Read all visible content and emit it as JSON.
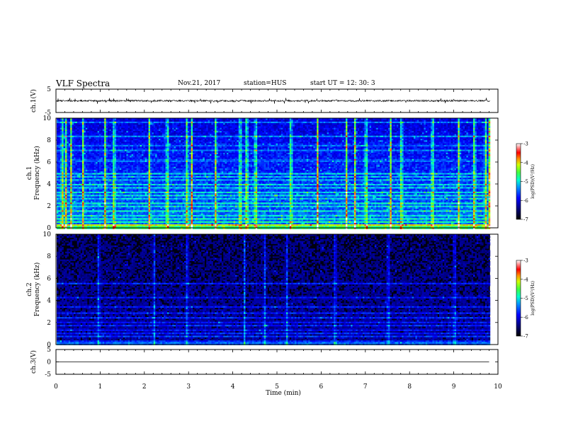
{
  "header": {
    "title": "VLF Spectra",
    "date": "Nov.21, 2017",
    "station": "station=HUS",
    "start": "start UT = 12: 30: 3"
  },
  "chart_data": [
    {
      "type": "line",
      "panel": "ch1-waveform",
      "ylabel": "ch.1(V)",
      "ylim": [
        -5,
        5
      ],
      "yticks": [
        "5",
        "-5"
      ],
      "series_description_value_mean": 0
    },
    {
      "type": "heatmap",
      "panel": "ch1-spectrogram",
      "ylabel": "ch.1\nFrequency (kHz)",
      "ylabel_lines": [
        "ch.1",
        "Frequency (kHz)"
      ],
      "ylim": [
        0,
        10
      ],
      "yticks": [
        "0",
        "2",
        "4",
        "6",
        "8",
        "10"
      ],
      "colorbar": {
        "label": "log(PSD)(V²/Hz)",
        "range": [
          -7,
          -3
        ],
        "ticks": [
          "-3",
          "-4",
          "-5",
          "-6",
          "-7"
        ]
      },
      "horizontal_bands_khz": [
        0.3,
        0.6,
        0.9,
        1.2,
        1.6,
        2.0,
        2.3,
        2.7,
        3.0,
        3.3,
        3.7,
        4.0,
        4.4,
        4.7,
        5.0,
        6.2,
        7.1,
        7.6,
        8.4,
        9.7
      ],
      "vertical_bursts_min": [
        0.12,
        0.2,
        0.33,
        0.6,
        1.1,
        1.3,
        2.1,
        2.5,
        2.95,
        3.05,
        3.6,
        4.15,
        4.3,
        4.5,
        5.3,
        5.9,
        6.55,
        6.75,
        7.0,
        7.55,
        7.8,
        8.5,
        9.1,
        9.45,
        9.7,
        9.78
      ]
    },
    {
      "type": "heatmap",
      "panel": "ch2-spectrogram",
      "ylabel_lines": [
        "ch.2",
        "Frequency (kHz)"
      ],
      "ylim": [
        0,
        10
      ],
      "yticks": [
        "0",
        "2",
        "4",
        "6",
        "8",
        "10"
      ],
      "colorbar": {
        "label": "log(PSD)(V²/Hz)",
        "range": [
          -7,
          -3
        ],
        "ticks": [
          "-3",
          "-4",
          "-5",
          "-6",
          "-7"
        ]
      },
      "horizontal_bands_khz": [
        0.4,
        0.8,
        1.1,
        1.4,
        1.8,
        2.1,
        2.5,
        2.9,
        3.5,
        4.3,
        5.6
      ],
      "vertical_bursts_min": [
        0.95,
        2.2,
        2.95,
        4.25,
        4.7,
        5.2,
        6.3,
        7.5,
        9.0
      ]
    },
    {
      "type": "line",
      "panel": "ch3-waveform",
      "ylabel": "ch.3(V)",
      "ylim": [
        -5,
        5
      ],
      "yticks": [
        "5",
        "0",
        "-5"
      ],
      "x": [
        0,
        9.8
      ],
      "values": [
        0,
        0
      ]
    }
  ],
  "xaxis": {
    "label": "Time (min)",
    "range": [
      0,
      10
    ],
    "ticks": [
      "0",
      "1",
      "2",
      "3",
      "4",
      "5",
      "6",
      "7",
      "8",
      "9",
      "10"
    ]
  },
  "colors": {
    "colormap": [
      "#000080",
      "#0000ff",
      "#0080ff",
      "#00ffff",
      "#00ff80",
      "#80ff00",
      "#ffff00",
      "#ff8000",
      "#ff0000",
      "#ffffff"
    ],
    "frame": "#000000"
  }
}
